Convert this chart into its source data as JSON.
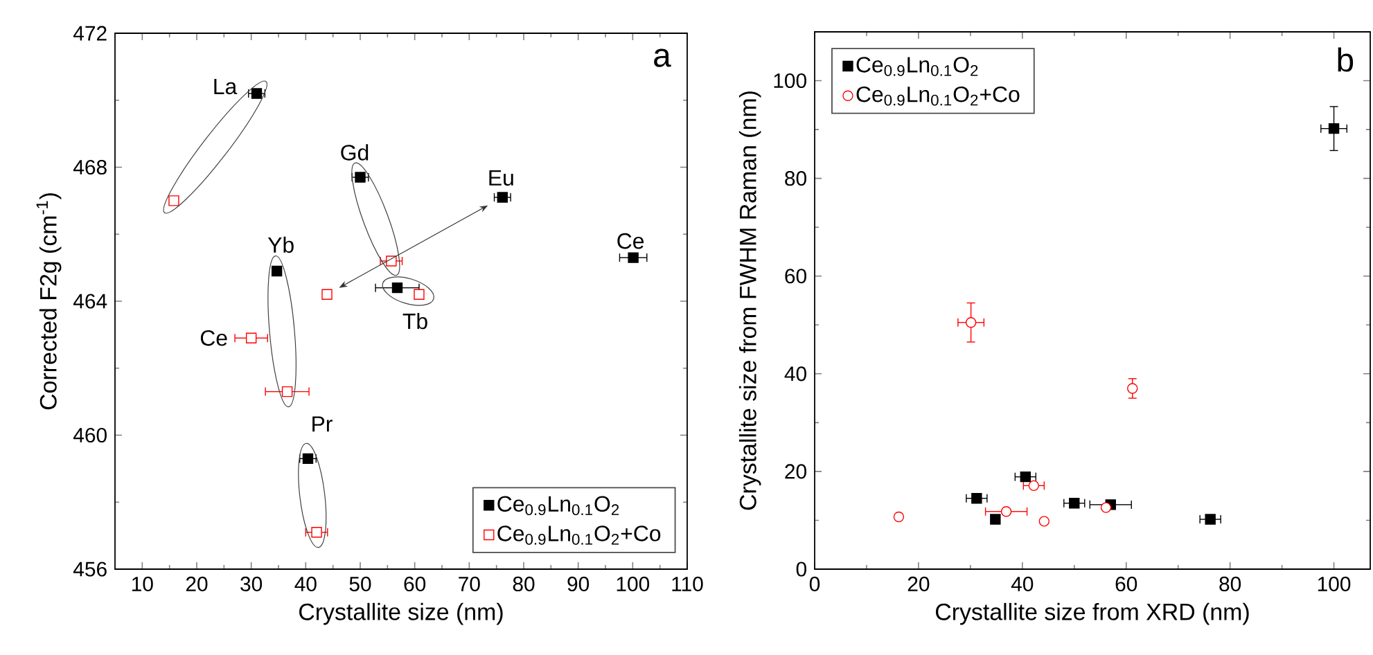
{
  "chart_data": [
    {
      "type": "scatter",
      "xlabel": "Crystallite size (nm)",
      "ylabel": "Corrected F2g (cm$^{-1}$)",
      "xlim": [
        5,
        110
      ],
      "xticks": [
        10,
        20,
        30,
        40,
        50,
        60,
        70,
        80,
        90,
        100,
        110
      ],
      "ylim": [
        456,
        472
      ],
      "yticks": [
        456,
        460,
        464,
        468,
        472
      ],
      "legend": "bottom right",
      "series": [
        {
          "name": "Ce$_{0.9}$Ln$_{0.1}$O$_{2}$",
          "color": "#000000",
          "marker": "square",
          "x": [
            31,
            50,
            76.1,
            100.1,
            34.7,
            56.8,
            40.4
          ],
          "values": [
            470.2,
            467.7,
            467.1,
            465.3,
            464.9,
            464.4,
            459.3
          ],
          "xerrors": [
            1.5,
            1.5,
            1.5,
            2.5,
            null,
            4,
            1.5
          ]
        },
        {
          "name": "Ce$_{0.9}$Ln$_{0.1}$O$_{2}$+Co",
          "color": "#ff0000",
          "marker": "square",
          "x": [
            15.8,
            55.7,
            43.9,
            30.0,
            36.6,
            60.8,
            42.0
          ],
          "values": [
            467.0,
            465.2,
            464.2,
            462.9,
            461.3,
            464.2,
            457.1
          ],
          "xerrors": [
            null,
            2,
            null,
            3,
            4,
            null,
            2
          ]
        }
      ],
      "annotations": [
        {
          "text": "La",
          "x": 31,
          "y": 470.2
        },
        {
          "text": "Gd",
          "x": 50,
          "y": 467.7
        },
        {
          "text": "Eu",
          "x": 76.1,
          "y": 467.1
        },
        {
          "text": "Ce",
          "x": 100.1,
          "y": 465.3
        },
        {
          "text": "Yb",
          "x": 34.7,
          "y": 464.9
        },
        {
          "text": "Tb",
          "x": 56.8,
          "y": 464.4
        },
        {
          "text": "Pr",
          "x": 40.4,
          "y": 459.3
        },
        {
          "text": "Ce",
          "x": 30.0,
          "y": 462.9
        },
        "a"
      ]
    },
    {
      "type": "scatter",
      "xlabel": "Crystallite size from XRD (nm)",
      "ylabel": "Crystallite size from FWHM Raman (nm)",
      "xlim": [
        0,
        107
      ],
      "xticks": [
        0,
        20,
        40,
        60,
        80,
        100
      ],
      "ylim": [
        0,
        110
      ],
      "yticks": [
        0,
        20,
        40,
        60,
        80,
        100
      ],
      "legend": "top left",
      "series": [
        {
          "name": "Ce$_{0.9}$Ln$_{0.1}$O$_{2}$",
          "color": "#000000",
          "marker": "square",
          "x": [
            31.2,
            34.8,
            40.6,
            50.0,
            57.0,
            76.2,
            100
          ],
          "values": [
            14.5,
            10.2,
            18.9,
            13.5,
            13.2,
            10.2,
            90.2
          ],
          "xerrors": [
            2,
            null,
            2,
            2,
            4,
            2,
            2.5
          ],
          "errors": [
            null,
            null,
            null,
            null,
            null,
            null,
            4.5
          ]
        },
        {
          "name": "Ce$_{0.9}$Ln$_{0.1}$O$_{2}$+Co",
          "color": "#ff0000",
          "marker": "circle",
          "x": [
            16.2,
            30.1,
            36.9,
            42.2,
            44.2,
            56.1,
            61.2
          ],
          "values": [
            10.7,
            50.5,
            11.8,
            17.1,
            9.8,
            12.6,
            37.0
          ],
          "xerrors": [
            null,
            2.5,
            4,
            2,
            null,
            null,
            null
          ],
          "errors": [
            null,
            4,
            null,
            null,
            null,
            null,
            2
          ]
        }
      ],
      "annotations": [
        "b"
      ]
    }
  ]
}
